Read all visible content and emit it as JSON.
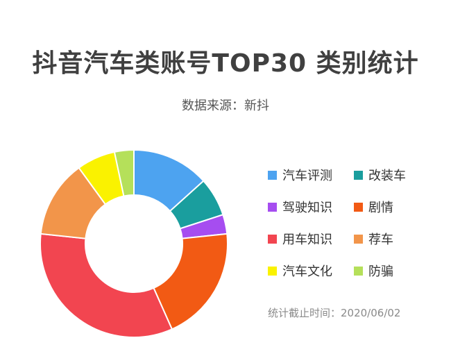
{
  "title": "抖音汽车类账号TOP30 类别统计",
  "subtitle": "数据来源：新抖",
  "footnote": "统计截止时间：2020/06/02",
  "chart_data": {
    "type": "pie",
    "variant": "donut",
    "title": "抖音汽车类账号TOP30 类别统计",
    "legend_position": "right",
    "labels": [
      "汽车评测",
      "改装车",
      "驾驶知识",
      "剧情",
      "用车知识",
      "荐车",
      "汽车文化",
      "防骗"
    ],
    "values": [
      4,
      2,
      1,
      6,
      10,
      4,
      2,
      1
    ],
    "colors": [
      "#4DA3F0",
      "#1A9E9E",
      "#A64DF0",
      "#F25A14",
      "#F24550",
      "#F2954A",
      "#FAF200",
      "#B5E05A"
    ]
  },
  "legend": [
    {
      "label": "汽车评测",
      "color": "#4DA3F0"
    },
    {
      "label": "改装车",
      "color": "#1A9E9E"
    },
    {
      "label": "驾驶知识",
      "color": "#A64DF0"
    },
    {
      "label": "剧情",
      "color": "#F25A14"
    },
    {
      "label": "用车知识",
      "color": "#F24550"
    },
    {
      "label": "荐车",
      "color": "#F2954A"
    },
    {
      "label": "汽车文化",
      "color": "#FAF200"
    },
    {
      "label": "防骗",
      "color": "#B5E05A"
    }
  ]
}
